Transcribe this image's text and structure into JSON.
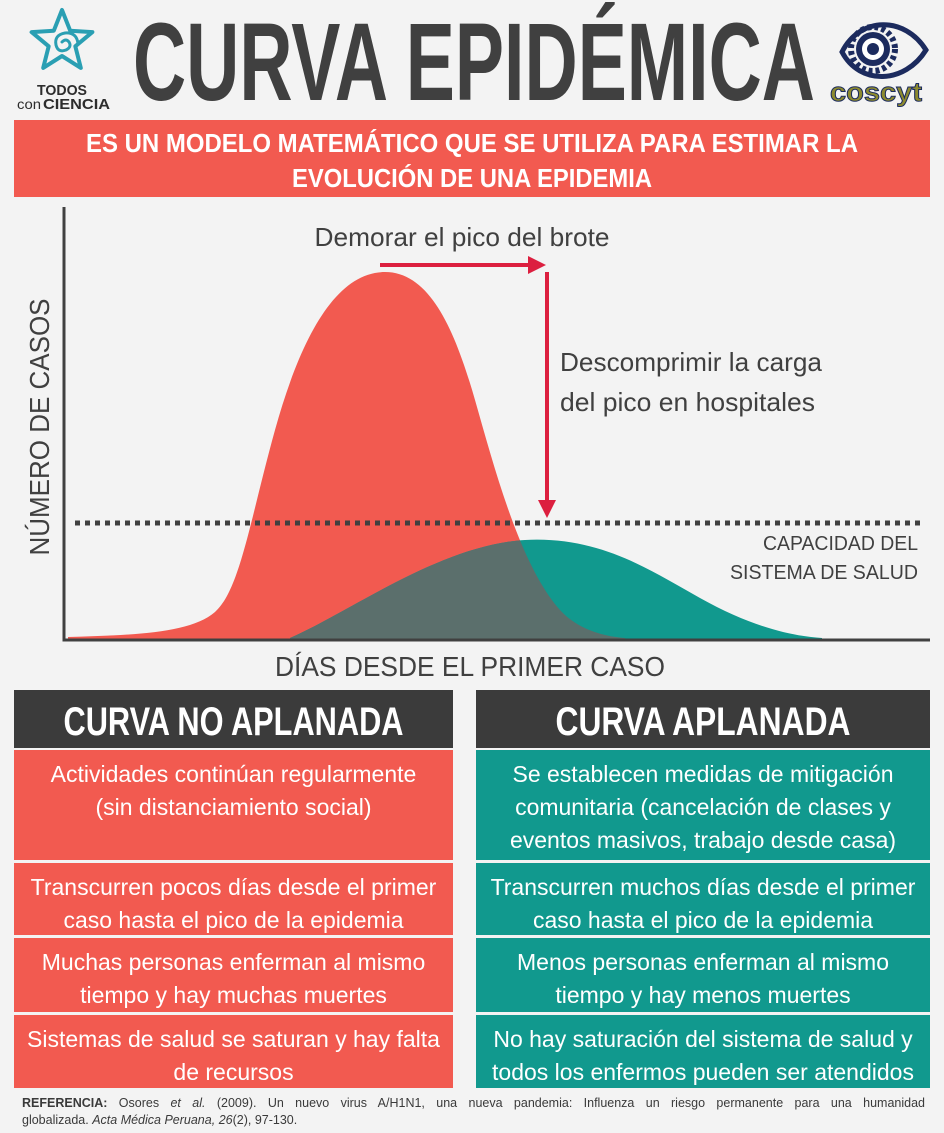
{
  "header": {
    "title": "CURVA EPIDÉMICA",
    "logo_left": {
      "line1": "TODOS",
      "line2_a": "con",
      "line2_b": "CIENCIA",
      "icon": "starfish-spiral-icon"
    },
    "logo_right": {
      "text": "coscyt",
      "icon": "eye-gear-icon"
    }
  },
  "banner": {
    "lines": [
      "ES UN MODELO MATEMÁTICO QUE SE UTILIZA PARA ESTIMAR LA",
      "EVOLUCIÓN DE UNA EPIDEMIA"
    ]
  },
  "diagram": {
    "y_axis_label": "NÚMERO DE CASOS",
    "x_axis_label": "DÍAS DESDE EL PRIMER CASO",
    "delay_label": "Demorar el pico del brote",
    "decompress_label": [
      "Descomprimir la carga",
      "del pico en hospitales"
    ],
    "capacity_label": [
      "CAPACIDAD DEL",
      "SISTEMA DE SALUD"
    ],
    "icons": [
      "arrow-right-icon",
      "arrow-down-icon"
    ]
  },
  "comparison": {
    "not_flattened": {
      "title": "CURVA NO APLANADA",
      "rows": [
        [
          "Actividades continúan regularmente",
          "(sin distanciamiento social)"
        ],
        [
          "Transcurren pocos días desde el primer",
          "caso hasta el pico de la epidemia"
        ],
        [
          "Muchas personas enferman al mismo",
          "tiempo y hay muchas muertes"
        ],
        [
          "Sistemas de salud se saturan y hay falta",
          "de recursos"
        ]
      ]
    },
    "flattened": {
      "title": "CURVA APLANADA",
      "rows": [
        [
          "Se establecen medidas de mitigación",
          "comunitaria (cancelación de clases y",
          "eventos masivos, trabajo desde casa)"
        ],
        [
          "Transcurren muchos días desde el primer",
          "caso hasta el pico de la epidemia"
        ],
        [
          "Menos personas enferman al mismo",
          "tiempo y hay menos muertes"
        ],
        [
          "No hay saturación del sistema de salud y",
          "todos los enfermos pueden ser atendidos"
        ]
      ]
    }
  },
  "reference": {
    "label": "REFERENCIA:",
    "author": "Osores",
    "et_al": "et al.",
    "citation_line1": "(2009). Un nuevo virus A/H1N1, una nueva pandemia: Influenza un riesgo permanente para una humanidad",
    "citation_line2": "globalizada.",
    "journal": "Acta Médica Peruana,",
    "volume": "26",
    "pages": "(2), 97-130."
  },
  "colors": {
    "background": "#f3f3f3",
    "red": "#f25a50",
    "teal": "#11998e",
    "overlap": "#5b6f6c",
    "dark": "#404040",
    "arrow": "#dc1f3f",
    "header_bar": "#3b3b3b",
    "logo_teal": "#2a9fb3",
    "logo_navy": "#1c2b5e",
    "logo_gold": "#8d8a2e"
  }
}
